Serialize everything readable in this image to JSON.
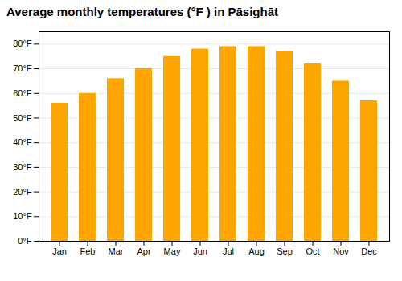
{
  "chart_data": {
    "type": "bar",
    "title": "Average monthly temperatures (°F ) in Pāsighāt",
    "categories": [
      "Jan",
      "Feb",
      "Mar",
      "Apr",
      "May",
      "Jun",
      "Jul",
      "Aug",
      "Sep",
      "Oct",
      "Nov",
      "Dec"
    ],
    "values": [
      56,
      60,
      66,
      70,
      75,
      78,
      79,
      79,
      77,
      72,
      65,
      57
    ],
    "color": "#FFA500",
    "ylim": [
      0,
      85
    ],
    "yticks": [
      {
        "value": 0,
        "label": "0°F"
      },
      {
        "value": 10,
        "label": "10°F"
      },
      {
        "value": 20,
        "label": "20°F"
      },
      {
        "value": 30,
        "label": "30°F"
      },
      {
        "value": 40,
        "label": "40°F"
      },
      {
        "value": 50,
        "label": "50°F"
      },
      {
        "value": 60,
        "label": "60°F"
      },
      {
        "value": 70,
        "label": "70°F"
      },
      {
        "value": 80,
        "label": "80°F"
      }
    ],
    "grid": true
  }
}
